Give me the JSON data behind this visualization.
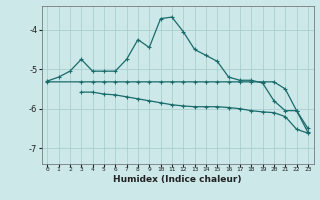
{
  "xlabel": "Humidex (Indice chaleur)",
  "bg_color": "#cce8e8",
  "grid_color": "#aacece",
  "line_color": "#1a6b6b",
  "xlim": [
    -0.5,
    23.5
  ],
  "ylim": [
    -7.4,
    -3.4
  ],
  "yticks": [
    -7,
    -6,
    -5,
    -4
  ],
  "xticks": [
    0,
    1,
    2,
    3,
    4,
    5,
    6,
    7,
    8,
    9,
    10,
    11,
    12,
    13,
    14,
    15,
    16,
    17,
    18,
    19,
    20,
    21,
    22,
    23
  ],
  "line1_x": [
    0,
    1,
    2,
    3,
    4,
    5,
    6,
    7,
    8,
    9,
    10,
    11,
    12,
    13,
    14,
    15,
    16,
    17,
    18,
    19,
    20,
    21,
    22,
    23
  ],
  "line1_y": [
    -5.3,
    -5.2,
    -5.05,
    -4.75,
    -5.05,
    -5.05,
    -5.05,
    -4.75,
    -4.25,
    -4.45,
    -3.72,
    -3.68,
    -4.05,
    -4.5,
    -4.65,
    -4.8,
    -5.2,
    -5.28,
    -5.28,
    -5.35,
    -5.8,
    -6.05,
    -6.05,
    -6.5
  ],
  "line2_x": [
    0,
    3,
    4,
    5,
    6,
    7,
    8,
    9,
    10,
    11,
    12,
    13,
    14,
    15,
    16,
    17,
    18,
    19,
    20,
    21,
    22,
    23
  ],
  "line2_y": [
    -5.32,
    -5.32,
    -5.32,
    -5.32,
    -5.32,
    -5.32,
    -5.32,
    -5.32,
    -5.32,
    -5.32,
    -5.32,
    -5.32,
    -5.32,
    -5.32,
    -5.32,
    -5.32,
    -5.32,
    -5.32,
    -5.32,
    -5.5,
    -6.05,
    -6.6
  ],
  "line3_x": [
    3,
    4,
    5,
    6,
    7,
    8,
    9,
    10,
    11,
    12,
    13,
    14,
    15,
    16,
    17,
    18,
    19,
    20,
    21,
    22,
    23
  ],
  "line3_y": [
    -5.58,
    -5.58,
    -5.63,
    -5.65,
    -5.7,
    -5.75,
    -5.8,
    -5.85,
    -5.9,
    -5.93,
    -5.95,
    -5.95,
    -5.95,
    -5.97,
    -6.0,
    -6.05,
    -6.08,
    -6.1,
    -6.2,
    -6.52,
    -6.62
  ]
}
